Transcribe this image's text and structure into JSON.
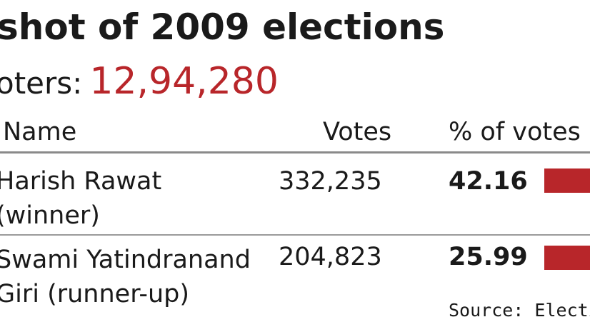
{
  "title": "shot of 2009 elections",
  "voters": {
    "label": "oters:",
    "count": "12,94,280"
  },
  "table": {
    "headers": {
      "name": "Name",
      "votes": "Votes",
      "pct": "% of votes p"
    },
    "rows": [
      {
        "name_line1": "Harish Rawat",
        "name_line2": "(winner)",
        "votes": "332,235",
        "pct": "42.16",
        "pct_value": 42.16
      },
      {
        "name_line1": "Swami Yatindranand",
        "name_line2": "Giri (runner-up)",
        "votes": "204,823",
        "pct": "25.99",
        "pct_value": 25.99
      }
    ]
  },
  "source": "Source: Electio",
  "colors": {
    "accent": "#b8262a",
    "text": "#1a1a1a",
    "rule": "#8a8a8a"
  }
}
